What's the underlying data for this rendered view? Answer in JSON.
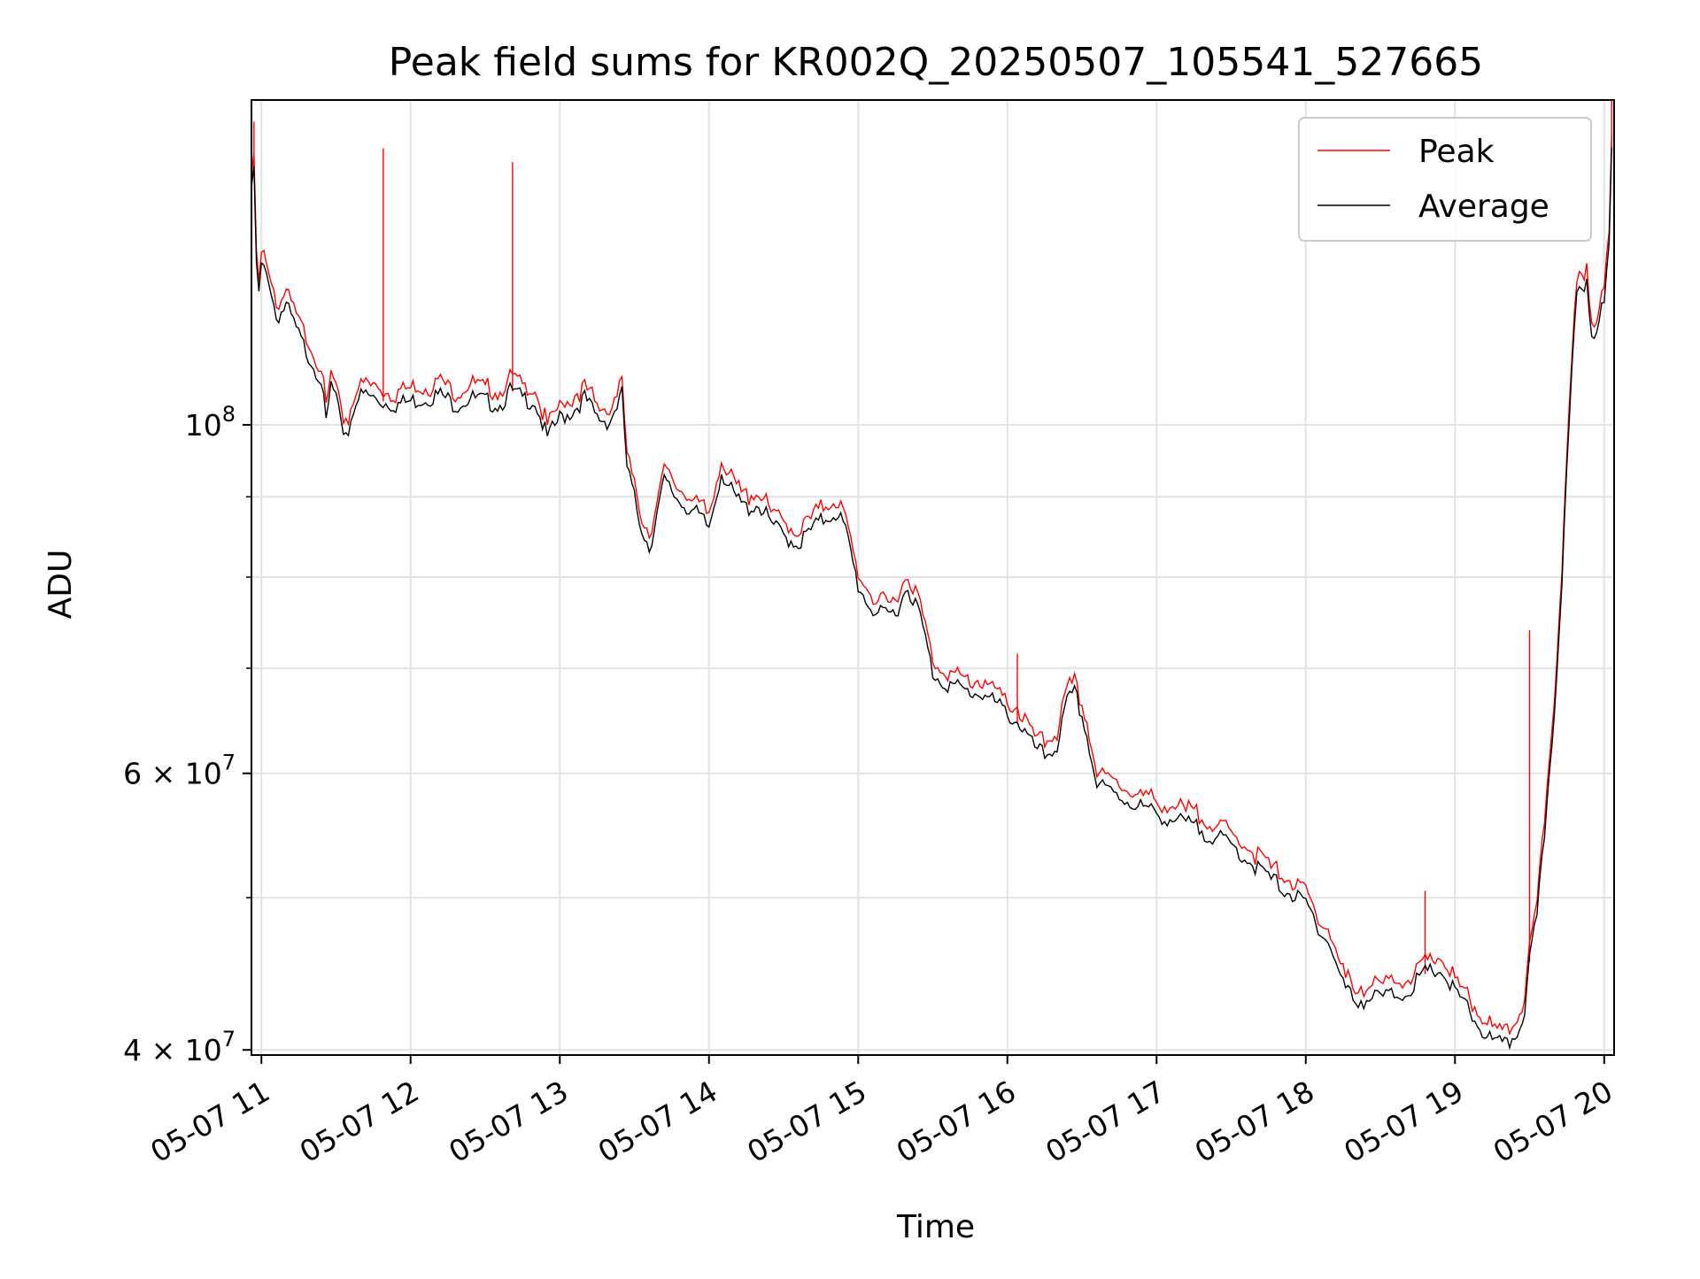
{
  "chart_data": {
    "type": "line",
    "title": "Peak field sums for KR002Q_20250507_105541_527665",
    "xlabel": "Time",
    "ylabel": "ADU",
    "yscale": "log",
    "xlim": [
      "05-07 10:56",
      "05-07 20:04"
    ],
    "ylim": [
      39700000,
      161000000
    ],
    "grid": true,
    "legend": {
      "position": "top-right",
      "entries": [
        "Peak",
        "Average"
      ]
    },
    "x_ticks": [
      {
        "value": "05-07 11",
        "label": "05-07 11"
      },
      {
        "value": "05-07 12",
        "label": "05-07 12"
      },
      {
        "value": "05-07 13",
        "label": "05-07 13"
      },
      {
        "value": "05-07 14",
        "label": "05-07 14"
      },
      {
        "value": "05-07 15",
        "label": "05-07 15"
      },
      {
        "value": "05-07 16",
        "label": "05-07 16"
      },
      {
        "value": "05-07 17",
        "label": "05-07 17"
      },
      {
        "value": "05-07 18",
        "label": "05-07 18"
      },
      {
        "value": "05-07 19",
        "label": "05-07 19"
      },
      {
        "value": "05-07 20",
        "label": "05-07 20"
      }
    ],
    "y_major_ticks": [
      {
        "value": 40000000,
        "label_base": "4 × 10",
        "label_exp": "7"
      },
      {
        "value": 60000000,
        "label_base": "6 × 10",
        "label_exp": "7"
      },
      {
        "value": 100000000,
        "label_base": "10",
        "label_exp": "8"
      }
    ],
    "y_minor_ticks": [
      50000000,
      70000000,
      80000000,
      90000000
    ],
    "series": [
      {
        "name": "Average",
        "color": "#000000",
        "points": [
          [
            "05-07 10:56",
            140000000
          ],
          [
            "05-07 10:57",
            146000000
          ],
          [
            "05-07 10:58",
            126000000
          ],
          [
            "05-07 10:59",
            121000000
          ],
          [
            "05-07 11:00",
            126000000
          ],
          [
            "05-07 11:03",
            124000000
          ],
          [
            "05-07 11:06",
            117000000
          ],
          [
            "05-07 11:08",
            118000000
          ],
          [
            "05-07 11:10",
            119000000
          ],
          [
            "05-07 11:13",
            116000000
          ],
          [
            "05-07 11:16",
            113000000
          ],
          [
            "05-07 11:20",
            110000000
          ],
          [
            "05-07 11:24",
            107000000
          ],
          [
            "05-07 11:26",
            100000000
          ],
          [
            "05-07 11:28",
            106000000
          ],
          [
            "05-07 11:30",
            104000000
          ],
          [
            "05-07 11:32",
            99500000
          ],
          [
            "05-07 11:35",
            99000000
          ],
          [
            "05-07 11:38",
            104000000
          ],
          [
            "05-07 11:42",
            104500000
          ],
          [
            "05-07 11:48",
            103500000
          ],
          [
            "05-07 11:54",
            103000000
          ],
          [
            "05-07 12:00",
            103500000
          ],
          [
            "05-07 12:06",
            104000000
          ],
          [
            "05-07 12:12",
            104500000
          ],
          [
            "05-07 12:18",
            103000000
          ],
          [
            "05-07 12:24",
            104000000
          ],
          [
            "05-07 12:30",
            103500000
          ],
          [
            "05-07 12:36",
            103000000
          ],
          [
            "05-07 12:40",
            105000000
          ],
          [
            "05-07 12:45",
            104000000
          ],
          [
            "05-07 12:50",
            103500000
          ],
          [
            "05-07 12:55",
            98000000
          ],
          [
            "05-07 13:00",
            101000000
          ],
          [
            "05-07 13:05",
            102000000
          ],
          [
            "05-07 13:10",
            104000000
          ],
          [
            "05-07 13:15",
            101000000
          ],
          [
            "05-07 13:20",
            100500000
          ],
          [
            "05-07 13:25",
            104500000
          ],
          [
            "05-07 13:27",
            94000000
          ],
          [
            "05-07 13:32",
            87000000
          ],
          [
            "05-07 13:36",
            83500000
          ],
          [
            "05-07 13:42",
            92000000
          ],
          [
            "05-07 13:48",
            89500000
          ],
          [
            "05-07 13:54",
            88000000
          ],
          [
            "05-07 14:00",
            86000000
          ],
          [
            "05-07 14:05",
            93500000
          ],
          [
            "05-07 14:10",
            90000000
          ],
          [
            "05-07 14:15",
            88500000
          ],
          [
            "05-07 14:20",
            89000000
          ],
          [
            "05-07 14:25",
            86500000
          ],
          [
            "05-07 14:30",
            85000000
          ],
          [
            "05-07 14:36",
            84000000
          ],
          [
            "05-07 14:42",
            86000000
          ],
          [
            "05-07 14:48",
            87500000
          ],
          [
            "05-07 14:52",
            88000000
          ],
          [
            "05-07 14:55",
            85500000
          ],
          [
            "05-07 15:00",
            79000000
          ],
          [
            "05-07 15:05",
            76500000
          ],
          [
            "05-07 15:10",
            75500000
          ],
          [
            "05-07 15:15",
            76000000
          ],
          [
            "05-07 15:20",
            79000000
          ],
          [
            "05-07 15:25",
            75500000
          ],
          [
            "05-07 15:30",
            69500000
          ],
          [
            "05-07 15:35",
            68500000
          ],
          [
            "05-07 15:40",
            68000000
          ],
          [
            "05-07 15:45",
            67500000
          ],
          [
            "05-07 15:50",
            67500000
          ],
          [
            "05-07 15:55",
            66500000
          ],
          [
            "05-07 16:00",
            65500000
          ],
          [
            "05-07 16:05",
            64500000
          ],
          [
            "05-07 16:10",
            62500000
          ],
          [
            "05-07 16:15",
            61500000
          ],
          [
            "05-07 16:20",
            62500000
          ],
          [
            "05-07 16:24",
            66500000
          ],
          [
            "05-07 16:27",
            67500000
          ],
          [
            "05-07 16:31",
            64500000
          ],
          [
            "05-07 16:34",
            61000000
          ],
          [
            "05-07 16:36",
            59000000
          ],
          [
            "05-07 16:45",
            58000000
          ],
          [
            "05-07 17:00",
            56500000
          ],
          [
            "05-07 17:15",
            55500000
          ],
          [
            "05-07 17:30",
            54000000
          ],
          [
            "05-07 17:45",
            51500000
          ],
          [
            "05-07 18:00",
            49500000
          ],
          [
            "05-07 18:05",
            48000000
          ],
          [
            "05-07 18:10",
            46500000
          ],
          [
            "05-07 18:15",
            44000000
          ],
          [
            "05-07 18:20",
            43000000
          ],
          [
            "05-07 18:30",
            43200000
          ],
          [
            "05-07 18:40",
            43500000
          ],
          [
            "05-07 18:48",
            44700000
          ],
          [
            "05-07 18:54",
            45000000
          ],
          [
            "05-07 19:00",
            43500000
          ],
          [
            "05-07 19:05",
            42500000
          ],
          [
            "05-07 19:10",
            41300000
          ],
          [
            "05-07 19:15",
            40500000
          ],
          [
            "05-07 19:20",
            40200000
          ],
          [
            "05-07 19:25",
            41000000
          ],
          [
            "05-07 19:28",
            42500000
          ],
          [
            "05-07 19:30",
            45500000
          ],
          [
            "05-07 19:33",
            48500000
          ],
          [
            "05-07 19:36",
            55000000
          ],
          [
            "05-07 19:40",
            66000000
          ],
          [
            "05-07 19:43",
            80000000
          ],
          [
            "05-07 19:45",
            93000000
          ],
          [
            "05-07 19:47",
            108000000
          ],
          [
            "05-07 19:49",
            121000000
          ],
          [
            "05-07 19:53",
            124000000
          ],
          [
            "05-07 19:55",
            114000000
          ],
          [
            "05-07 19:57",
            116000000
          ],
          [
            "05-07 20:00",
            119000000
          ],
          [
            "05-07 20:02",
            130000000
          ],
          [
            "05-07 20:03",
            150000000
          ]
        ]
      },
      {
        "name": "Peak",
        "color": "#ff0000",
        "spikes": [
          [
            "05-07 10:57",
            156000000
          ],
          [
            "05-07 11:49",
            150000000
          ],
          [
            "05-07 12:41",
            147000000
          ],
          [
            "05-07 16:04",
            71500000
          ],
          [
            "05-07 18:48",
            50500000
          ],
          [
            "05-07 19:30",
            74000000
          ],
          [
            "05-07 20:03",
            161000000
          ]
        ]
      }
    ]
  }
}
